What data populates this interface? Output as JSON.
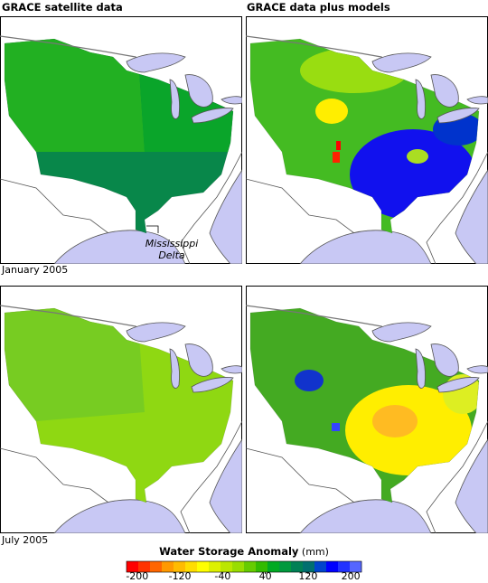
{
  "columns": [
    "GRACE satellite data",
    "GRACE data plus models"
  ],
  "rows": [
    "January 2005",
    "July 2005"
  ],
  "annotation": [
    "Mississippi",
    "Delta"
  ],
  "legend": {
    "title": "Water Storage Anomaly",
    "unit": "(mm)",
    "range": [
      -220,
      220
    ],
    "ticks": [
      -200,
      -120,
      -40,
      40,
      120,
      200
    ],
    "colors": [
      "#ff0000",
      "#ff3300",
      "#ff6600",
      "#ff9900",
      "#ffbb00",
      "#ffdd00",
      "#ffff00",
      "#ddf000",
      "#bbe600",
      "#99dd00",
      "#66cc00",
      "#33bb00",
      "#00aa22",
      "#00993d",
      "#008055",
      "#006f6f",
      "#0044cc",
      "#0000ff",
      "#2233ff",
      "#5566ff"
    ]
  }
}
